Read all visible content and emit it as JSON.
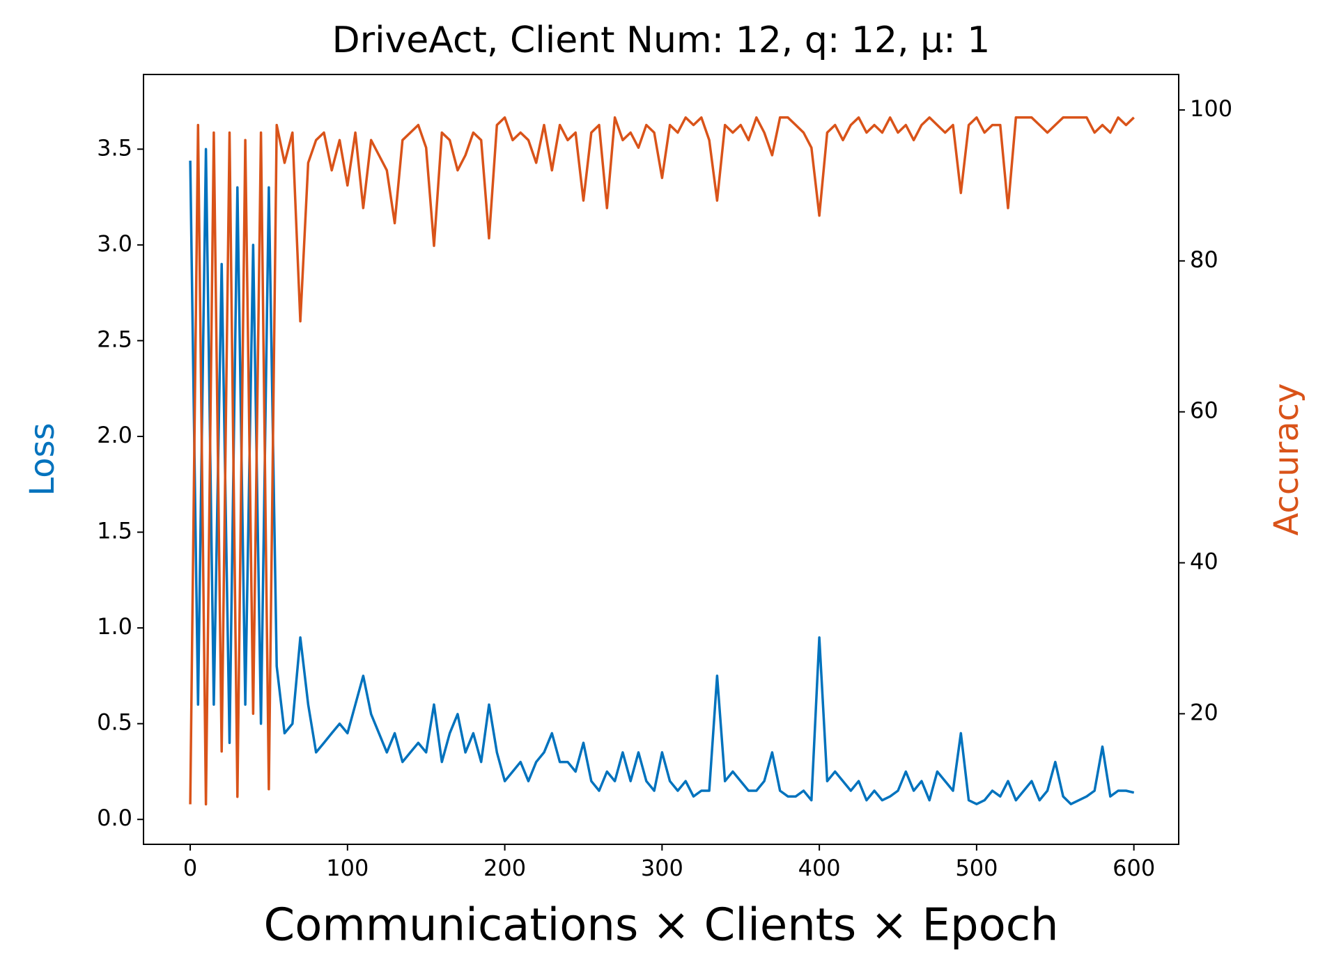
{
  "chart_data": {
    "type": "line",
    "title": "DriveAct, Client Num: 12, q: 12, μ: 1",
    "xlabel": "Communications × Clients × Epoch",
    "ylabel": "Loss",
    "y2label": "Accuracy",
    "x": [
      0,
      5,
      10,
      15,
      20,
      25,
      30,
      35,
      40,
      45,
      50,
      55,
      60,
      65,
      70,
      75,
      80,
      85,
      90,
      95,
      100,
      105,
      110,
      115,
      120,
      125,
      130,
      135,
      140,
      145,
      150,
      155,
      160,
      165,
      170,
      175,
      180,
      185,
      190,
      195,
      200,
      205,
      210,
      215,
      220,
      225,
      230,
      235,
      240,
      245,
      250,
      255,
      260,
      265,
      270,
      275,
      280,
      285,
      290,
      295,
      300,
      305,
      310,
      315,
      320,
      325,
      330,
      335,
      340,
      345,
      350,
      355,
      360,
      365,
      370,
      375,
      380,
      385,
      390,
      395,
      400,
      405,
      410,
      415,
      420,
      425,
      430,
      435,
      440,
      445,
      450,
      455,
      460,
      465,
      470,
      475,
      480,
      485,
      490,
      495,
      500,
      505,
      510,
      515,
      520,
      525,
      530,
      535,
      540,
      545,
      550,
      555,
      560,
      565,
      570,
      575,
      580,
      585,
      590,
      595,
      600
    ],
    "series": [
      {
        "name": "Loss",
        "color": "#0072bd",
        "axis": "y",
        "values": [
          3.44,
          0.6,
          3.5,
          0.6,
          2.9,
          0.4,
          3.3,
          0.6,
          3.0,
          0.5,
          3.3,
          0.8,
          0.45,
          0.5,
          0.95,
          0.6,
          0.35,
          0.4,
          0.45,
          0.5,
          0.45,
          0.6,
          0.75,
          0.55,
          0.45,
          0.35,
          0.45,
          0.3,
          0.35,
          0.4,
          0.35,
          0.6,
          0.3,
          0.45,
          0.55,
          0.35,
          0.45,
          0.3,
          0.6,
          0.35,
          0.2,
          0.25,
          0.3,
          0.2,
          0.3,
          0.35,
          0.45,
          0.3,
          0.3,
          0.25,
          0.4,
          0.2,
          0.15,
          0.25,
          0.2,
          0.35,
          0.2,
          0.35,
          0.2,
          0.15,
          0.35,
          0.2,
          0.15,
          0.2,
          0.12,
          0.15,
          0.15,
          0.75,
          0.2,
          0.25,
          0.2,
          0.15,
          0.15,
          0.2,
          0.35,
          0.15,
          0.12,
          0.12,
          0.15,
          0.1,
          0.95,
          0.2,
          0.25,
          0.2,
          0.15,
          0.2,
          0.1,
          0.15,
          0.1,
          0.12,
          0.15,
          0.25,
          0.15,
          0.2,
          0.1,
          0.25,
          0.2,
          0.15,
          0.45,
          0.1,
          0.08,
          0.1,
          0.15,
          0.12,
          0.2,
          0.1,
          0.15,
          0.2,
          0.1,
          0.15,
          0.3,
          0.12,
          0.08,
          0.1,
          0.12,
          0.15,
          0.38,
          0.12,
          0.15,
          0.15,
          0.14
        ]
      },
      {
        "name": "Accuracy",
        "color": "#d95319",
        "axis": "y2",
        "values": [
          8,
          98,
          8,
          97,
          15,
          97,
          9,
          96,
          20,
          97,
          10,
          98,
          93,
          97,
          72,
          93,
          96,
          97,
          92,
          96,
          90,
          97,
          87,
          96,
          94,
          92,
          85,
          96,
          97,
          98,
          95,
          82,
          97,
          96,
          92,
          94,
          97,
          96,
          83,
          98,
          99,
          96,
          97,
          96,
          93,
          98,
          92,
          98,
          96,
          97,
          88,
          97,
          98,
          87,
          99,
          96,
          97,
          95,
          98,
          97,
          91,
          98,
          97,
          99,
          98,
          99,
          96,
          88,
          98,
          97,
          98,
          96,
          99,
          97,
          94,
          99,
          99,
          98,
          97,
          95,
          86,
          97,
          98,
          96,
          98,
          99,
          97,
          98,
          97,
          99,
          97,
          98,
          96,
          98,
          99,
          98,
          97,
          98,
          89,
          98,
          99,
          97,
          98,
          98,
          87,
          99,
          99,
          99,
          98,
          97,
          98,
          99,
          99,
          99,
          99,
          97,
          98,
          97,
          99,
          98,
          99
        ]
      }
    ],
    "xlim": [
      -29.7,
      628.5
    ],
    "xticks": [
      0,
      100,
      200,
      300,
      400,
      500,
      600
    ],
    "ylim": [
      -0.13,
      3.89
    ],
    "yticks": [
      {
        "value": 0,
        "label": "0.0"
      },
      0.5,
      {
        "value": 1,
        "label": "1.0"
      },
      1.5,
      {
        "value": 2,
        "label": "2.0"
      },
      2.5,
      {
        "value": 3,
        "label": "3.0"
      },
      3.5
    ],
    "y2lim": [
      2.7,
      104.7
    ],
    "y2ticks": [
      20,
      40,
      60,
      80,
      100
    ]
  }
}
